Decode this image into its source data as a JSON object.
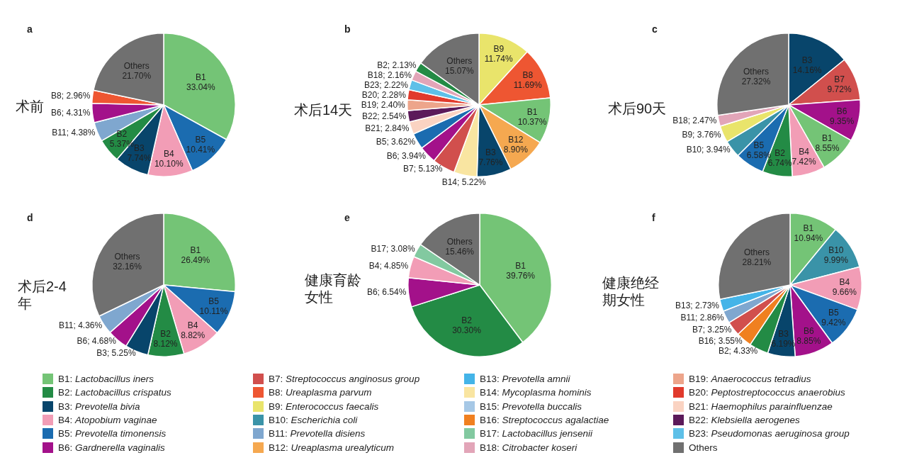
{
  "chart_data": [
    {
      "type": "pie",
      "title": "a",
      "subtitle": "术前",
      "categories": [
        "B1",
        "B5",
        "B4",
        "B3",
        "B2",
        "B11",
        "B6",
        "B8",
        "Others"
      ],
      "values": [
        33.04,
        10.41,
        10.1,
        7.74,
        5.37,
        4.38,
        4.31,
        2.96,
        21.7
      ],
      "value_labels": [
        "33.04%",
        "10.41%",
        "10.10%",
        "7.74%",
        "5.37%",
        "4.38%",
        "4.31%",
        "2.96%",
        "21.70%"
      ],
      "colors": [
        "#74c476",
        "#1b6cb0",
        "#f29db6",
        "#08456b",
        "#238b45",
        "#7fa7cf",
        "#a3118a",
        "#ee5632",
        "#707070"
      ]
    },
    {
      "type": "pie",
      "title": "b",
      "subtitle": "术后14天",
      "categories": [
        "B9",
        "B8",
        "B1",
        "B12",
        "B3",
        "B14",
        "B7",
        "B6",
        "B5",
        "B21",
        "B22",
        "B19",
        "B20",
        "B23",
        "B18",
        "B2",
        "Others"
      ],
      "values": [
        11.74,
        11.69,
        10.37,
        8.9,
        7.76,
        5.22,
        5.13,
        3.94,
        3.62,
        2.84,
        2.54,
        2.4,
        2.28,
        2.22,
        2.16,
        2.13,
        15.07
      ],
      "value_labels": [
        "11.74%",
        "11.69%",
        "10.37%",
        "8.90%",
        "7.76%",
        "5.22%",
        "5.13%",
        "3.94%",
        "3.62%",
        "2.84%",
        "2.54%",
        "2.40%",
        "2.28%",
        "2.22%",
        "2.16%",
        "2.13%",
        "15.07%"
      ],
      "colors": [
        "#e9e46b",
        "#ee5632",
        "#74c476",
        "#f5a850",
        "#08456b",
        "#f9e5a1",
        "#d14f4d",
        "#a3118a",
        "#1b6cb0",
        "#fad3c2",
        "#5b1a5a",
        "#eda58b",
        "#e13a2c",
        "#5ec0e8",
        "#e2a5b8",
        "#238b45",
        "#707070"
      ]
    },
    {
      "type": "pie",
      "title": "c",
      "subtitle": "术后90天",
      "categories": [
        "B3",
        "B7",
        "B6",
        "B1",
        "B4",
        "B2",
        "B5",
        "B10",
        "B9",
        "B18",
        "Others"
      ],
      "values": [
        14.16,
        9.72,
        9.35,
        8.55,
        7.42,
        6.74,
        6.58,
        3.94,
        3.76,
        2.47,
        27.32
      ],
      "value_labels": [
        "14.16%",
        "9.72%",
        "9.35%",
        "8.55%",
        "7.42%",
        "6.74%",
        "6.58%",
        "3.94%",
        "3.76%",
        "2.47%",
        "27.32%"
      ],
      "colors": [
        "#08456b",
        "#d14f4d",
        "#a3118a",
        "#74c476",
        "#f29db6",
        "#238b45",
        "#1b6cb0",
        "#3a93a8",
        "#e9e46b",
        "#e2a5b8",
        "#707070"
      ]
    },
    {
      "type": "pie",
      "title": "d",
      "subtitle": "术后2-4年",
      "categories": [
        "B1",
        "B5",
        "B4",
        "B2",
        "B3",
        "B6",
        "B11",
        "Others"
      ],
      "values": [
        26.49,
        10.11,
        8.82,
        8.12,
        5.25,
        4.68,
        4.36,
        32.16
      ],
      "value_labels": [
        "26.49%",
        "10.11%",
        "8.82%",
        "8.12%",
        "5.25%",
        "4.68%",
        "4.36%",
        "32.16%"
      ],
      "colors": [
        "#74c476",
        "#1b6cb0",
        "#f29db6",
        "#238b45",
        "#08456b",
        "#a3118a",
        "#7fa7cf",
        "#707070"
      ]
    },
    {
      "type": "pie",
      "title": "e",
      "subtitle": "健康育龄女性",
      "categories": [
        "B1",
        "B2",
        "B6",
        "B4",
        "B17",
        "Others"
      ],
      "values": [
        39.76,
        30.3,
        6.54,
        4.85,
        3.08,
        15.46
      ],
      "value_labels": [
        "39.76%",
        "30.30%",
        "6.54%",
        "4.85%",
        "3.08%",
        "15.46%"
      ],
      "colors": [
        "#74c476",
        "#238b45",
        "#a3118a",
        "#f29db6",
        "#82c9a0",
        "#707070"
      ]
    },
    {
      "type": "pie",
      "title": "f",
      "subtitle": "健康绝经期女性",
      "categories": [
        "B1",
        "B10",
        "B4",
        "B5",
        "B6",
        "B3",
        "B2",
        "B16",
        "B7",
        "B11",
        "B13",
        "Others"
      ],
      "values": [
        10.94,
        9.99,
        9.66,
        9.42,
        8.85,
        6.19,
        4.33,
        3.55,
        3.25,
        2.86,
        2.73,
        28.21
      ],
      "value_labels": [
        "10.94%",
        "9.99%",
        "9.66%",
        "9.42%",
        "8.85%",
        "6.19%",
        "4.33%",
        "3.55%",
        "3.25%",
        "2.86%",
        "2.73%",
        "28.21%"
      ],
      "colors": [
        "#74c476",
        "#3a93a8",
        "#f29db6",
        "#1b6cb0",
        "#a3118a",
        "#08456b",
        "#238b45",
        "#f08020",
        "#d14f4d",
        "#7fa7cf",
        "#44b4e8",
        "#707070"
      ]
    },
    {
      "type": "other",
      "categories": [
        "B1: Lactobacillus iners",
        "B2: Lactobacillus crispatus",
        "B3: Prevotella bivia",
        "B4: Atopobium vaginae",
        "B5: Prevotella timonensis",
        "B6: Gardnerella vaginalis",
        "B7: Streptococcus anginosus group",
        "B8: Ureaplasma parvum",
        "B9: Enterococcus faecalis",
        "B10: Escherichia coli",
        "B11: Prevotella disiens",
        "B12: Ureaplasma urealyticum",
        "B13: Prevotella amnii",
        "B14: Mycoplasma hominis",
        "B15: Prevotella buccalis",
        "B16: Streptococcus agalactiae",
        "B17: Lactobacillus jensenii",
        "B18: Citrobacter koseri",
        "B19: Anaerococcus tetradius",
        "B20: Peptostreptococcus anaerobius",
        "B21: Haemophilus parainfluenzae",
        "B22: Klebsiella aerogenes",
        "B23: Pseudomonas aeruginosa group",
        "Others"
      ],
      "colors": [
        "#74c476",
        "#238b45",
        "#08456b",
        "#f29db6",
        "#1b6cb0",
        "#a3118a",
        "#d14f4d",
        "#ee5632",
        "#e9e46b",
        "#3a93a8",
        "#7fa7cf",
        "#f5a850",
        "#44b4e8",
        "#f9e5a1",
        "#a6c8e6",
        "#f08020",
        "#82c9a0",
        "#e2a5b8",
        "#eda58b",
        "#e13a2c",
        "#fad3c2",
        "#5b1a5a",
        "#5ec0e8",
        "#707070"
      ]
    }
  ]
}
